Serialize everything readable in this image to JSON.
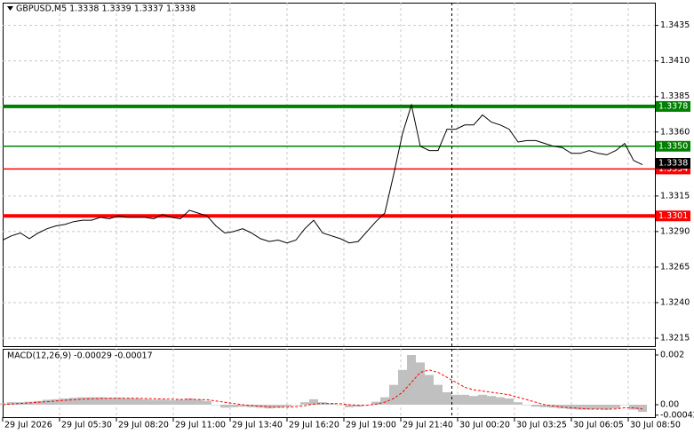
{
  "chart_data": [
    {
      "type": "line",
      "title": "GBPUSD,M5  1.3338 1.3339 1.3337 1.3338",
      "color": "#000000",
      "values": [
        1.3284,
        1.3287,
        1.3289,
        1.3285,
        1.3289,
        1.3292,
        1.3294,
        1.3295,
        1.3297,
        1.3298,
        1.3298,
        1.33,
        1.3299,
        1.3301,
        1.33,
        1.33,
        1.33,
        1.3299,
        1.3302,
        1.33,
        1.3299,
        1.3305,
        1.3303,
        1.3301,
        1.3294,
        1.3289,
        1.329,
        1.3292,
        1.3289,
        1.3285,
        1.3283,
        1.3284,
        1.3282,
        1.3284,
        1.3292,
        1.3298,
        1.3289,
        1.3287,
        1.3285,
        1.3282,
        1.3283,
        1.329,
        1.3297,
        1.3303,
        1.333,
        1.3359,
        1.3379,
        1.335,
        1.3347,
        1.3347,
        1.3362,
        1.3362,
        1.3365,
        1.3365,
        1.3372,
        1.3367,
        1.3365,
        1.3362,
        1.3353,
        1.3354,
        1.3354,
        1.3352,
        1.335,
        1.3349,
        1.3345,
        1.3345,
        1.3347,
        1.3345,
        1.3344,
        1.3347,
        1.3352,
        1.334,
        1.3337
      ],
      "xlim": [
        0,
        73.4
      ],
      "xticks": [
        {
          "value": 0,
          "label": "29 Jul 2026"
        },
        {
          "value": 6.4,
          "label": "29 Jul 05:30"
        },
        {
          "value": 12.8,
          "label": "29 Jul 08:20"
        },
        {
          "value": 19.2,
          "label": "29 Jul 11:00"
        },
        {
          "value": 25.6,
          "label": "29 Jul 13:40"
        },
        {
          "value": 32,
          "label": "29 Jul 16:20"
        },
        {
          "value": 38.4,
          "label": "29 Jul 19:00"
        },
        {
          "value": 44.8,
          "label": "29 Jul 21:40"
        },
        {
          "value": 51.2,
          "label": "30 Jul 00:20"
        },
        {
          "value": 57.6,
          "label": "30 Jul 03:25"
        },
        {
          "value": 64,
          "label": "30 Jul 06:05"
        },
        {
          "value": 70.4,
          "label": "30 Jul 08:50"
        }
      ],
      "ylim": [
        1.32094,
        1.3451
      ],
      "yticks": [
        1.3435,
        {
          "value": 1.341,
          "label": "1.3410"
        },
        1.3385,
        {
          "value": 1.336,
          "label": "1.3360"
        },
        1.3315,
        {
          "value": 1.329,
          "label": "1.3290"
        },
        1.3265,
        {
          "value": 1.324,
          "label": "1.3240"
        },
        1.3215
      ],
      "grid": true,
      "levels": [
        1.3378,
        1.335,
        1.3334,
        1.3301
      ],
      "level_labels": [
        "1.3378",
        "1.3350",
        "1.3334",
        "1.3301"
      ],
      "level_colors": [
        "#008000",
        "#008000",
        "#ff0000",
        "#ff0000"
      ],
      "current_price": 1.3338
    },
    {
      "type": "macd",
      "title": "MACD(12,26,9) -0.00029 -0.00017",
      "color": "#c0c0c0",
      "signal_color": "#ff0000",
      "values": [
        5e-05,
        0.0001,
        0.0001,
        0.00012,
        0.00015,
        0.0002,
        0.00022,
        0.00025,
        0.00028,
        0.0003,
        0.0003,
        0.0003,
        0.00028,
        0.00028,
        0.00026,
        0.00025,
        0.00022,
        0.0002,
        0.0002,
        0.00018,
        0.0002,
        0.00025,
        0.0002,
        0.00015,
        0,
        -0.00012,
        -0.0001,
        -8e-05,
        -0.0001,
        -0.00012,
        -0.00015,
        -0.00012,
        -8e-05,
        0,
        0.0001,
        0.00022,
        0.0001,
        5e-05,
        0,
        -0.0001,
        -8e-05,
        0,
        0.00012,
        0.0003,
        0.0008,
        0.0014,
        0.002,
        0.0017,
        0.0012,
        0.0008,
        0.0005,
        0.0004,
        0.0004,
        0.00035,
        0.0004,
        0.00035,
        0.0003,
        0.00025,
        0.0001,
        0,
        -8e-05,
        -0.0001,
        -0.00012,
        -0.00015,
        -0.00018,
        -0.0002,
        -0.0002,
        -0.00018,
        -0.0002,
        -0.00015,
        0,
        -0.0002,
        -0.00029
      ],
      "signal_values": [
        0,
        3e-05,
        5e-05,
        7e-05,
        0.0001,
        0.00012,
        0.00015,
        0.00018,
        0.0002,
        0.00022,
        0.00024,
        0.00025,
        0.00026,
        0.00026,
        0.00026,
        0.00026,
        0.00025,
        0.00024,
        0.00023,
        0.00022,
        0.00021,
        0.00022,
        0.00021,
        0.0002,
        0.00015,
        0.0001,
        5e-05,
        0,
        -3e-05,
        -6e-05,
        -9e-05,
        -0.0001,
        -0.0001,
        -8e-05,
        -4e-05,
        3e-05,
        5e-05,
        5e-05,
        4e-05,
        0,
        -2e-05,
        -2e-05,
        2e-05,
        0.0001,
        0.00025,
        0.0005,
        0.0009,
        0.0013,
        0.0014,
        0.0013,
        0.0011,
        0.0009,
        0.0007,
        0.0006,
        0.00055,
        0.0005,
        0.00045,
        0.0004,
        0.0003,
        0.0002,
        0.0001,
        0,
        -5e-05,
        -0.0001,
        -0.00012,
        -0.00015,
        -0.00017,
        -0.00018,
        -0.00018,
        -0.00017,
        -0.00012,
        -0.00013,
        -0.00017
      ],
      "xlim": [
        0,
        73.4
      ],
      "ylim": [
        -0.0005,
        0.00225
      ],
      "yticks": [
        0.002,
        {
          "value": 0,
          "label": "0.00"
        },
        {
          "value": -0.00042,
          "label": "-0.00042"
        }
      ]
    }
  ]
}
